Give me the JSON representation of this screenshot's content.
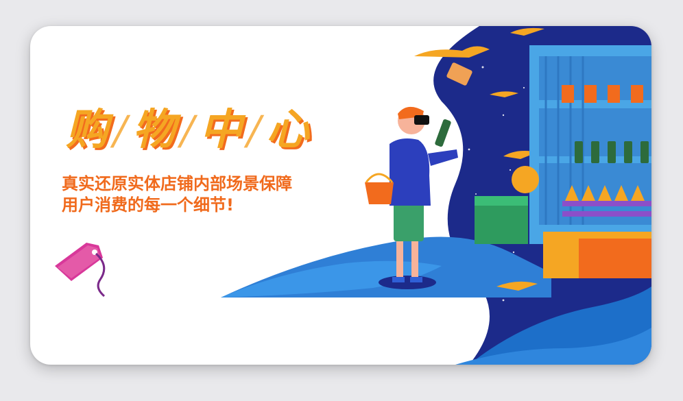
{
  "banner": {
    "title_chars": [
      "购",
      "物",
      "中",
      "心"
    ],
    "separator": "/",
    "subtitle_line1": "真实还原实体店铺内部场景保障",
    "subtitle_line2": "用户消费的每一个细节!"
  },
  "colors": {
    "title_fill": "#f5a623",
    "title_shadow": "#f26b1d",
    "subtitle": "#f06a1c",
    "night_sky": "#1c2a8a",
    "floor_blue": "#2f7fd6",
    "shelf_blue": "#4aa6e6"
  }
}
